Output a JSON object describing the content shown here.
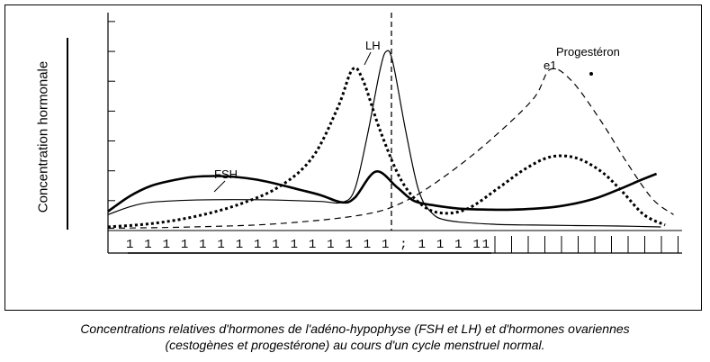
{
  "chart_data": {
    "type": "line",
    "ylabel": "Concentration hormonale",
    "series": [
      {
        "name": "FSH",
        "style": "thick-solid",
        "points": [
          [
            0,
            0.42
          ],
          [
            0.5,
            0.75
          ],
          [
            1,
            0.98
          ],
          [
            1.5,
            1.1
          ],
          [
            2,
            1.18
          ],
          [
            2.5,
            1.2
          ],
          [
            3,
            1.18
          ],
          [
            3.5,
            1.12
          ],
          [
            4,
            1.02
          ],
          [
            4.5,
            0.9
          ],
          [
            5,
            0.78
          ],
          [
            5.5,
            0.62
          ],
          [
            5.8,
            0.72
          ],
          [
            6.3,
            1.3
          ],
          [
            6.8,
            0.95
          ],
          [
            7.2,
            0.65
          ],
          [
            7.7,
            0.55
          ],
          [
            8.3,
            0.48
          ],
          [
            9,
            0.46
          ],
          [
            9.5,
            0.46
          ],
          [
            10,
            0.48
          ],
          [
            10.5,
            0.52
          ],
          [
            11,
            0.6
          ],
          [
            11.5,
            0.72
          ],
          [
            12,
            0.9
          ],
          [
            12.5,
            1.1
          ],
          [
            12.9,
            1.25
          ]
        ]
      },
      {
        "name": "LH",
        "style": "thin-solid",
        "points": [
          [
            0,
            0.35
          ],
          [
            0.5,
            0.52
          ],
          [
            1,
            0.62
          ],
          [
            2,
            0.67
          ],
          [
            3,
            0.68
          ],
          [
            4,
            0.67
          ],
          [
            5,
            0.64
          ],
          [
            5.5,
            0.62
          ],
          [
            5.8,
            0.9
          ],
          [
            6.1,
            2.1
          ],
          [
            6.4,
            3.55
          ],
          [
            6.55,
            3.95
          ],
          [
            6.7,
            3.7
          ],
          [
            7.0,
            2.2
          ],
          [
            7.3,
            0.9
          ],
          [
            7.6,
            0.4
          ],
          [
            8,
            0.22
          ],
          [
            9,
            0.14
          ],
          [
            10,
            0.12
          ],
          [
            11,
            0.11
          ],
          [
            12,
            0.1
          ],
          [
            13,
            0.08
          ]
        ]
      },
      {
        "name": "",
        "style": "dotted-thick",
        "points": [
          [
            0,
            0.08
          ],
          [
            1,
            0.15
          ],
          [
            2,
            0.3
          ],
          [
            3,
            0.55
          ],
          [
            4,
            0.95
          ],
          [
            4.8,
            1.6
          ],
          [
            5.4,
            2.7
          ],
          [
            5.75,
            3.55
          ],
          [
            6.0,
            3.3
          ],
          [
            6.4,
            2.2
          ],
          [
            6.9,
            1.1
          ],
          [
            7.4,
            0.55
          ],
          [
            7.9,
            0.38
          ],
          [
            8.5,
            0.5
          ],
          [
            9.2,
            0.95
          ],
          [
            9.8,
            1.35
          ],
          [
            10.4,
            1.62
          ],
          [
            11.0,
            1.6
          ],
          [
            11.6,
            1.3
          ],
          [
            12.1,
            0.85
          ],
          [
            12.6,
            0.35
          ],
          [
            13.1,
            0.12
          ]
        ]
      },
      {
        "name": "Progestéron",
        "style": "dashed",
        "points": [
          [
            0,
            0.05
          ],
          [
            2,
            0.08
          ],
          [
            4,
            0.15
          ],
          [
            6,
            0.35
          ],
          [
            7,
            0.65
          ],
          [
            8,
            1.25
          ],
          [
            9,
            2.0
          ],
          [
            10,
            2.9
          ],
          [
            10.4,
            3.55
          ],
          [
            10.9,
            3.3
          ],
          [
            11.6,
            2.4
          ],
          [
            12.2,
            1.5
          ],
          [
            12.8,
            0.7
          ],
          [
            13.3,
            0.35
          ]
        ]
      }
    ],
    "labels": {
      "fsh": "FSH",
      "lh": "LH",
      "progesterone": "Progestéron",
      "oestrogene_fragment": "e1"
    },
    "x_tick_text": "1 1 1 1 1 1 1 1 1   1 1 1 1 1 1  ;  1 1   1 11",
    "xlim": [
      0,
      13.5
    ],
    "ylim": [
      0,
      4.8
    ],
    "grid": false
  },
  "caption": {
    "line1": "Concentrations relatives d'hormones de l'adéno-hypophyse (FSH et LH) et d'hormones ovariennes",
    "line2": "(cestogènes et progestérone) au cours d'un cycle menstruel normal."
  }
}
